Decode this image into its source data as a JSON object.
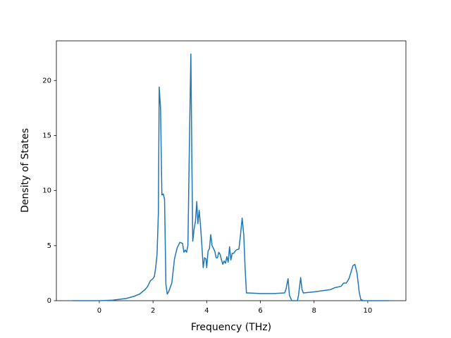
{
  "chart_data": {
    "type": "line",
    "x_label": "Frequency (THz)",
    "y_label": "Density of States",
    "color": "#1f77b4",
    "x": [
      -1.0,
      0.0,
      0.5,
      1.0,
      1.3,
      1.5,
      1.7,
      1.8,
      1.9,
      2.0,
      2.05,
      2.1,
      2.15,
      2.2,
      2.23,
      2.28,
      2.33,
      2.38,
      2.43,
      2.48,
      2.53,
      2.58,
      2.7,
      2.8,
      2.9,
      3.0,
      3.1,
      3.15,
      3.2,
      3.25,
      3.3,
      3.36,
      3.41,
      3.45,
      3.48,
      3.53,
      3.58,
      3.63,
      3.67,
      3.72,
      3.77,
      3.82,
      3.87,
      3.92,
      3.97,
      4.0,
      4.05,
      4.1,
      4.15,
      4.2,
      4.3,
      4.35,
      4.4,
      4.45,
      4.5,
      4.55,
      4.6,
      4.65,
      4.7,
      4.75,
      4.8,
      4.85,
      4.9,
      4.95,
      5.0,
      5.1,
      5.2,
      5.26,
      5.32,
      5.38,
      5.43,
      5.48,
      5.54,
      6.0,
      6.5,
      6.9,
      6.95,
      7.03,
      7.08,
      7.17,
      7.38,
      7.42,
      7.5,
      7.55,
      7.6,
      7.8,
      8.0,
      8.3,
      8.6,
      8.8,
      9.0,
      9.1,
      9.2,
      9.3,
      9.45,
      9.52,
      9.6,
      9.68,
      9.74,
      9.85,
      10.0,
      10.8
    ],
    "values": [
      0.0,
      0.0,
      0.05,
      0.2,
      0.4,
      0.6,
      1.0,
      1.3,
      1.8,
      2.0,
      2.2,
      3.0,
      4.2,
      8.0,
      19.4,
      17.5,
      9.6,
      9.7,
      9.2,
      1.5,
      0.6,
      0.8,
      1.6,
      3.8,
      4.8,
      5.3,
      5.2,
      4.4,
      4.6,
      4.4,
      5.0,
      15.0,
      22.4,
      12.0,
      5.4,
      6.5,
      7.2,
      9.0,
      7.0,
      8.2,
      6.8,
      5.0,
      3.0,
      3.9,
      3.8,
      3.0,
      4.5,
      4.7,
      6.0,
      5.0,
      4.5,
      3.9,
      3.9,
      4.4,
      4.2,
      3.7,
      3.3,
      3.6,
      3.4,
      4.0,
      3.5,
      4.9,
      3.7,
      4.3,
      4.3,
      4.6,
      4.7,
      6.0,
      7.5,
      6.0,
      3.0,
      0.7,
      0.7,
      0.65,
      0.65,
      0.7,
      1.0,
      2.0,
      0.5,
      0.0,
      0.0,
      0.5,
      2.1,
      1.0,
      0.7,
      0.75,
      0.8,
      0.9,
      1.0,
      1.2,
      1.3,
      1.6,
      1.6,
      2.0,
      3.2,
      3.3,
      2.5,
      0.8,
      0.1,
      0.0,
      0.0,
      0.0
    ],
    "xlim": [
      -1.6,
      11.42
    ],
    "ylim": [
      0,
      23.6
    ],
    "xticks": [
      0,
      2,
      4,
      6,
      8,
      10
    ],
    "yticks": [
      0,
      5,
      10,
      15,
      20
    ]
  }
}
